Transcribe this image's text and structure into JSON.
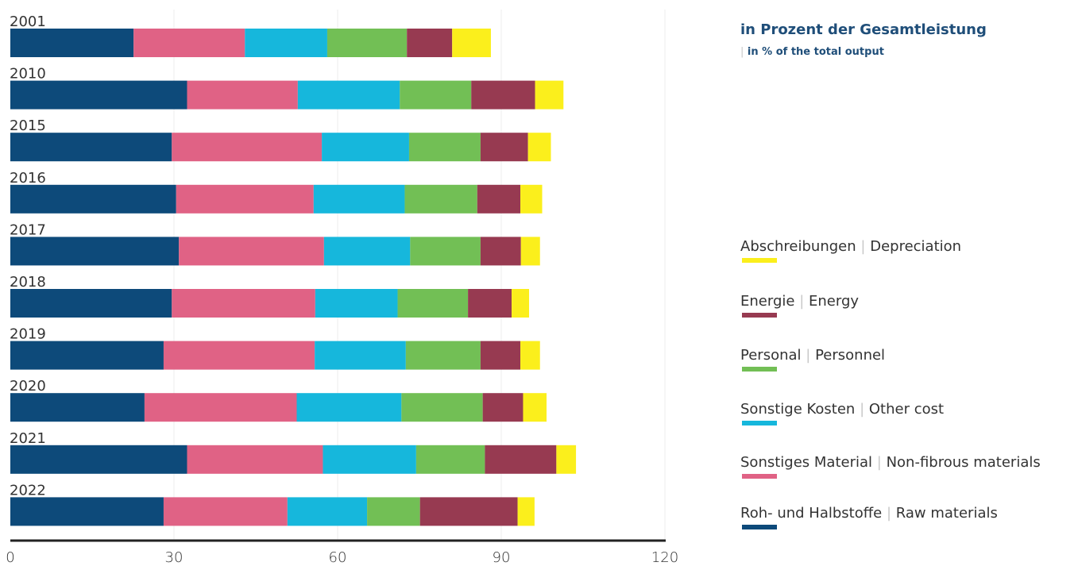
{
  "chart_data": {
    "type": "bar",
    "orientation": "horizontal",
    "stacked": true,
    "unit_title": "in Prozent der Gesamtleistung",
    "unit_subtitle": "in % of the total output",
    "categories": [
      "2001",
      "2010",
      "2015",
      "2016",
      "2017",
      "2018",
      "2019",
      "2020",
      "2021",
      "2022"
    ],
    "xlim": [
      0,
      120
    ],
    "xticks": [
      "0",
      "30",
      "60",
      "90",
      "120"
    ],
    "grid": true,
    "legend_position": "right",
    "series": [
      {
        "name": "Roh- und Halbstoffe",
        "name_en": "Raw materials",
        "color": "#0d4a7a",
        "values": [
          22.6,
          32.4,
          29.6,
          30.4,
          30.9,
          29.6,
          28.1,
          24.6,
          32.4,
          28.1
        ]
      },
      {
        "name": "Sonstiges Material",
        "name_en": "Non-fibrous materials",
        "color": "#e06285",
        "values": [
          20.4,
          20.3,
          27.5,
          25.2,
          26.6,
          26.3,
          27.7,
          27.9,
          24.9,
          22.7
        ]
      },
      {
        "name": "Sonstige Kosten",
        "name_en": "Other cost",
        "color": "#16b7dc",
        "values": [
          15.1,
          18.7,
          16.0,
          16.7,
          15.8,
          15.1,
          16.7,
          19.2,
          17.1,
          14.6
        ]
      },
      {
        "name": "Personal",
        "name_en": "Personnel",
        "color": "#72bf55",
        "values": [
          14.6,
          13.1,
          13.1,
          13.3,
          12.9,
          12.9,
          13.7,
          14.9,
          12.6,
          9.7
        ]
      },
      {
        "name": "Energie",
        "name_en": "Energy",
        "color": "#973a51",
        "values": [
          8.3,
          11.7,
          8.7,
          7.9,
          7.4,
          8.0,
          7.3,
          7.4,
          13.1,
          17.9
        ]
      },
      {
        "name": "Abschreibungen",
        "name_en": "Depreciation",
        "color": "#fbef1c",
        "values": [
          7.1,
          5.2,
          4.2,
          4.0,
          3.5,
          3.2,
          3.6,
          4.3,
          3.6,
          3.1
        ]
      }
    ]
  },
  "legend": [
    {
      "de": "Abschreibungen",
      "en": "Depreciation",
      "color": "#fbef1c"
    },
    {
      "de": "Energie",
      "en": "Energy",
      "color": "#973a51"
    },
    {
      "de": "Personal",
      "en": "Personnel",
      "color": "#72bf55"
    },
    {
      "de": "Sonstige Kosten",
      "en": "Other cost",
      "color": "#16b7dc"
    },
    {
      "de": "Sonstiges Material",
      "en": "Non-fibrous materials",
      "color": "#e06285"
    },
    {
      "de": "Roh- und Halbstoffe",
      "en": "Raw materials",
      "color": "#0d4a7a"
    }
  ],
  "legend_separator": "|"
}
